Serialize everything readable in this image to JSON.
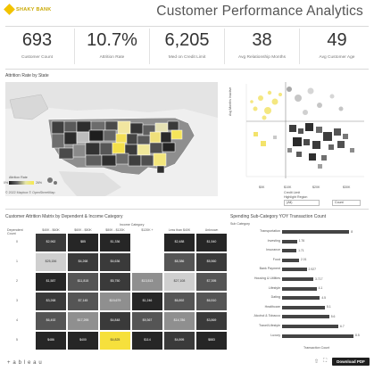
{
  "header": {
    "logo_text": "SHAKY BANK",
    "title": "Customer Performance Analytics"
  },
  "kpis": [
    {
      "value": "693",
      "label": "Customer Count"
    },
    {
      "value": "10.7%",
      "label": "Attrition Rate"
    },
    {
      "value": "6,205",
      "label": "Med on Credit Limit"
    },
    {
      "value": "38",
      "label": "Avg Relationship Months"
    },
    {
      "value": "49",
      "label": "Avg Customer Age"
    }
  ],
  "map": {
    "title": "Attrition Rate by State",
    "legend_title": "Attrition Rate",
    "legend_min": "0%",
    "legend_max": "26%",
    "copyright": "© 2022 Mapbox  © OpenStreetMap"
  },
  "scatter": {
    "ylabel": "Avg Months Inactive",
    "xlabel": "Credit Limit",
    "tick_labels": [
      "$0K",
      "$10K",
      "$20K",
      "$30K"
    ],
    "highlight_label": "Highlight Region",
    "dropdown_value": "(All)",
    "size_label": "Size By",
    "size_value": "Count",
    "colors": {
      "light": "#f3e36b",
      "dark": "#3d3d3d",
      "mid": "#8c8c8c"
    }
  },
  "matrix": {
    "title": "Customer Attrition Matrix by Dependent & Income Category",
    "col_group": "Income Category",
    "row_header": "Dependent Count",
    "columns": [
      "$40K - $60K",
      "$60K - $80K",
      "$80K - $120K",
      "$120K +",
      "Less than $40K",
      "Unknown"
    ],
    "rows": [
      {
        "label": "0",
        "cells": [
          "$2,962",
          "$85",
          "$1,336",
          "",
          "$2,488",
          "$1,540"
        ]
      },
      {
        "label": "1",
        "cells": [
          "$25,156",
          "$4,268",
          "$4,636",
          "",
          "$8,386",
          "$5,560"
        ]
      },
      {
        "label": "2",
        "cells": [
          "$1,587",
          "$11,815",
          "$5,750",
          "$13,513",
          "$27,108",
          "$7,395"
        ]
      },
      {
        "label": "3",
        "cells": [
          "$3,268",
          "$7,145",
          "$19,679",
          "$1,246",
          "$6,892",
          "$6,510"
        ]
      },
      {
        "label": "4",
        "cells": [
          "$6,492",
          "$17,295",
          "$4,848",
          "$9,367",
          "$14,786",
          "$3,869"
        ]
      },
      {
        "label": "5",
        "cells": [
          "$486",
          "$400",
          "$4,825",
          "$114",
          "$4,895",
          "$883"
        ]
      }
    ]
  },
  "bars": {
    "title": "Spending Sub-Category YOY Transaction Count",
    "axis_title": "Transaction Count",
    "col_title": "Sub Category",
    "items": [
      {
        "label": "Transportation",
        "value": 8,
        "text": "8"
      },
      {
        "label": "Investing",
        "value": 1.76,
        "text": "1.76"
      },
      {
        "label": "Insurance",
        "value": 1.71,
        "text": "1.71"
      },
      {
        "label": "Food",
        "value": 2.01,
        "text": "2.01"
      },
      {
        "label": "Bank Payment",
        "value": 2.927,
        "text": "2.927"
      },
      {
        "label": "Housing & Utilities",
        "value": 3.717,
        "text": "3.717"
      },
      {
        "label": "Lifestyle",
        "value": 4.1,
        "text": "4.1"
      },
      {
        "label": "Dating",
        "value": 4.5,
        "text": "4.5"
      },
      {
        "label": "Healthcare",
        "value": 5.1,
        "text": "5.1"
      },
      {
        "label": "Alcohol & Tobacco",
        "value": 5.6,
        "text": "5.6"
      },
      {
        "label": "Travel/Lifestyle",
        "value": 6.7,
        "text": "6.7"
      },
      {
        "label": "Luxury",
        "value": 8.5,
        "text": "8.5"
      }
    ]
  },
  "footer": {
    "brand": "+ a b l e a u",
    "download_label": "Download PDF"
  }
}
